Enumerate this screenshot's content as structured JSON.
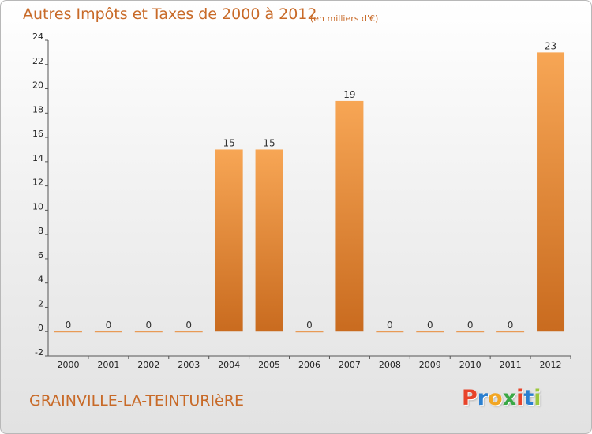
{
  "header": {
    "title": "Autres Impôts et Taxes de 2000 à 2012",
    "subtitle": "(en milliers d'€)"
  },
  "footer": {
    "place": "GRAINVILLE-LA-TEINTURIèRE",
    "logo_text": "Proxiti",
    "logo_colors": [
      "#e8442a",
      "#2a7fd0",
      "#f2a623",
      "#3aa845",
      "#e8442a",
      "#2a7fd0",
      "#9bc83c"
    ]
  },
  "colors": {
    "accent": "#c86a28",
    "bar_top": "#f7a655",
    "bar_bottom": "#c96b1f"
  },
  "chart_data": {
    "type": "bar",
    "categories": [
      "2000",
      "2001",
      "2002",
      "2003",
      "2004",
      "2005",
      "2006",
      "2007",
      "2008",
      "2009",
      "2010",
      "2011",
      "2012"
    ],
    "values": [
      0,
      0,
      0,
      0,
      15,
      15,
      0,
      19,
      0,
      0,
      0,
      0,
      23
    ],
    "data_labels": [
      "0",
      "0",
      "0",
      "0",
      "15",
      "15",
      "0",
      "19",
      "0",
      "0",
      "0",
      "0",
      "23"
    ],
    "ylim": [
      -2,
      24
    ],
    "yticks": [
      -2,
      0,
      2,
      4,
      6,
      8,
      10,
      12,
      14,
      16,
      18,
      20,
      22,
      24
    ],
    "grid": false,
    "title": "Autres Impôts et Taxes de 2000 à 2012",
    "xlabel": "",
    "ylabel": ""
  }
}
